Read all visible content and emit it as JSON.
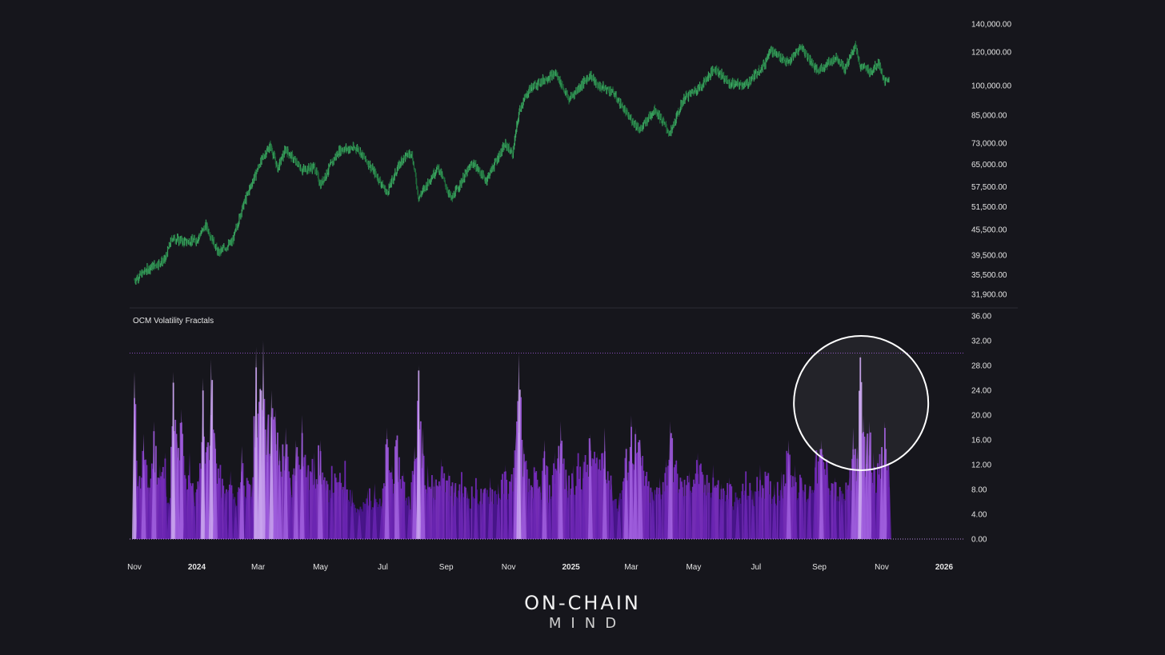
{
  "colors": {
    "background": "#16161c",
    "price_candles": "#2e8b4f",
    "volatility": "#7a2fc0",
    "volatility_peak": "#c9a3ee",
    "threshold_line": "#8a4dbf",
    "highlight_circle": "#ffffff"
  },
  "logo": {
    "line1": "ON-CHAIN",
    "line2": "MIND"
  },
  "chart_data": [
    {
      "type": "line",
      "title": "",
      "scale": "log",
      "ylim": [
        30000,
        150000
      ],
      "y_tick_labels": [
        "140,000.00",
        "120,000.00",
        "100,000.00",
        "85,000.00",
        "73,000.00",
        "65,000.00",
        "57,500.00",
        "51,500.00",
        "45,500.00",
        "39,500.00",
        "35,500.00",
        "31,900.00"
      ],
      "y_tick_values": [
        140000,
        120000,
        100000,
        85000,
        73000,
        65000,
        57500,
        51500,
        45500,
        39500,
        35500,
        31900
      ],
      "x_tick_labels": [
        "Nov",
        "2024",
        "Mar",
        "May",
        "Jul",
        "Sep",
        "Nov",
        "2025",
        "Mar",
        "May",
        "Jul",
        "Sep",
        "Nov",
        "2026"
      ],
      "x_tick_dates": [
        "2023-11-01",
        "2024-01-01",
        "2024-03-01",
        "2024-05-01",
        "2024-07-01",
        "2024-09-01",
        "2024-11-01",
        "2025-01-01",
        "2025-03-01",
        "2025-05-01",
        "2025-07-01",
        "2025-09-01",
        "2025-11-01",
        "2026-01-01"
      ],
      "bold_x_ticks": [
        "2024",
        "2025",
        "2026"
      ],
      "series": [
        {
          "values": [
            [
              "2023-11-01",
              34500
            ],
            [
              "2023-11-15",
              36800
            ],
            [
              "2023-12-01",
              38500
            ],
            [
              "2023-12-08",
              43500
            ],
            [
              "2023-12-20",
              42500
            ],
            [
              "2024-01-01",
              43000
            ],
            [
              "2024-01-10",
              46500
            ],
            [
              "2024-01-22",
              40000
            ],
            [
              "2024-02-05",
              42500
            ],
            [
              "2024-02-15",
              51500
            ],
            [
              "2024-02-28",
              62000
            ],
            [
              "2024-03-05",
              67000
            ],
            [
              "2024-03-13",
              72000
            ],
            [
              "2024-03-20",
              63500
            ],
            [
              "2024-03-28",
              70500
            ],
            [
              "2024-04-13",
              63000
            ],
            [
              "2024-04-25",
              64000
            ],
            [
              "2024-05-01",
              58000
            ],
            [
              "2024-05-20",
              70500
            ],
            [
              "2024-06-06",
              71000
            ],
            [
              "2024-06-25",
              61000
            ],
            [
              "2024-07-05",
              55500
            ],
            [
              "2024-07-20",
              67000
            ],
            [
              "2024-07-29",
              69500
            ],
            [
              "2024-08-05",
              54000
            ],
            [
              "2024-08-24",
              64000
            ],
            [
              "2024-09-06",
              53500
            ],
            [
              "2024-09-27",
              65500
            ],
            [
              "2024-10-10",
              59500
            ],
            [
              "2024-10-29",
              72500
            ],
            [
              "2024-11-05",
              68500
            ],
            [
              "2024-11-12",
              88000
            ],
            [
              "2024-11-22",
              98500
            ],
            [
              "2024-12-05",
              103000
            ],
            [
              "2024-12-17",
              107000
            ],
            [
              "2024-12-30",
              92500
            ],
            [
              "2025-01-20",
              106000
            ],
            [
              "2025-01-27",
              100000
            ],
            [
              "2025-02-10",
              97000
            ],
            [
              "2025-02-26",
              84500
            ],
            [
              "2025-03-10",
              78500
            ],
            [
              "2025-03-24",
              88000
            ],
            [
              "2025-04-08",
              76500
            ],
            [
              "2025-04-22",
              93500
            ],
            [
              "2025-05-08",
              99500
            ],
            [
              "2025-05-22",
              110000
            ],
            [
              "2025-06-05",
              101000
            ],
            [
              "2025-06-22",
              100500
            ],
            [
              "2025-07-10",
              113000
            ],
            [
              "2025-07-14",
              122000
            ],
            [
              "2025-08-02",
              113000
            ],
            [
              "2025-08-14",
              124000
            ],
            [
              "2025-08-30",
              108000
            ],
            [
              "2025-09-18",
              117000
            ],
            [
              "2025-09-26",
              109000
            ],
            [
              "2025-10-06",
              125000
            ],
            [
              "2025-10-11",
              111000
            ],
            [
              "2025-10-22",
              108000
            ],
            [
              "2025-10-29",
              113500
            ],
            [
              "2025-11-04",
              101000
            ],
            [
              "2025-11-08",
              104500
            ]
          ]
        }
      ]
    },
    {
      "type": "area",
      "title": "OCM Volatility Fractals",
      "ylim": [
        0,
        36
      ],
      "y_tick_labels": [
        "36.00",
        "32.00",
        "28.00",
        "24.00",
        "20.00",
        "16.00",
        "12.00",
        "8.00",
        "4.00",
        "0.00"
      ],
      "y_tick_values": [
        36,
        32,
        28,
        24,
        20,
        16,
        12,
        8,
        4,
        0
      ],
      "threshold": 30,
      "highlight": {
        "date": "2025-10-11",
        "value": 30
      },
      "series": [
        {
          "values": [
            [
              "2023-11-01",
              27
            ],
            [
              "2023-11-05",
              10
            ],
            [
              "2023-11-10",
              17
            ],
            [
              "2023-11-15",
              9
            ],
            [
              "2023-11-20",
              19
            ],
            [
              "2023-11-26",
              12
            ],
            [
              "2023-12-01",
              14
            ],
            [
              "2023-12-05",
              6
            ],
            [
              "2023-12-09",
              27
            ],
            [
              "2023-12-13",
              16
            ],
            [
              "2023-12-17",
              21
            ],
            [
              "2023-12-21",
              11
            ],
            [
              "2023-12-25",
              14
            ],
            [
              "2023-12-29",
              8
            ],
            [
              "2024-01-03",
              10
            ],
            [
              "2024-01-07",
              26
            ],
            [
              "2024-01-11",
              16
            ],
            [
              "2024-01-15",
              29
            ],
            [
              "2024-01-19",
              17
            ],
            [
              "2024-01-24",
              12
            ],
            [
              "2024-01-29",
              8
            ],
            [
              "2024-02-03",
              11
            ],
            [
              "2024-02-08",
              6
            ],
            [
              "2024-02-14",
              15
            ],
            [
              "2024-02-19",
              10
            ],
            [
              "2024-02-24",
              9
            ],
            [
              "2024-02-28",
              31
            ],
            [
              "2024-03-03",
              25
            ],
            [
              "2024-03-06",
              32
            ],
            [
              "2024-03-10",
              20
            ],
            [
              "2024-03-14",
              24
            ],
            [
              "2024-03-18",
              21
            ],
            [
              "2024-03-22",
              15
            ],
            [
              "2024-03-28",
              18
            ],
            [
              "2024-04-02",
              9
            ],
            [
              "2024-04-07",
              16
            ],
            [
              "2024-04-13",
              20
            ],
            [
              "2024-04-18",
              12
            ],
            [
              "2024-04-25",
              14
            ],
            [
              "2024-05-01",
              16
            ],
            [
              "2024-05-06",
              9
            ],
            [
              "2024-05-12",
              12
            ],
            [
              "2024-05-18",
              10
            ],
            [
              "2024-05-25",
              13
            ],
            [
              "2024-06-01",
              8
            ],
            [
              "2024-06-08",
              5
            ],
            [
              "2024-06-16",
              8
            ],
            [
              "2024-06-23",
              9
            ],
            [
              "2024-06-30",
              6
            ],
            [
              "2024-07-05",
              18
            ],
            [
              "2024-07-10",
              12
            ],
            [
              "2024-07-15",
              17
            ],
            [
              "2024-07-21",
              11
            ],
            [
              "2024-07-27",
              7
            ],
            [
              "2024-08-01",
              15
            ],
            [
              "2024-08-05",
              28
            ],
            [
              "2024-08-09",
              18
            ],
            [
              "2024-08-14",
              12
            ],
            [
              "2024-08-20",
              10
            ],
            [
              "2024-08-27",
              13
            ],
            [
              "2024-09-03",
              11
            ],
            [
              "2024-09-09",
              9
            ],
            [
              "2024-09-16",
              11
            ],
            [
              "2024-09-22",
              8
            ],
            [
              "2024-09-30",
              10
            ],
            [
              "2024-10-07",
              8
            ],
            [
              "2024-10-14",
              10
            ],
            [
              "2024-10-22",
              9
            ],
            [
              "2024-10-29",
              12
            ],
            [
              "2024-11-03",
              10
            ],
            [
              "2024-11-08",
              17
            ],
            [
              "2024-11-11",
              30
            ],
            [
              "2024-11-16",
              15
            ],
            [
              "2024-11-21",
              10
            ],
            [
              "2024-11-26",
              12
            ],
            [
              "2024-12-02",
              9
            ],
            [
              "2024-12-06",
              16
            ],
            [
              "2024-12-11",
              9
            ],
            [
              "2024-12-16",
              14
            ],
            [
              "2024-12-22",
              19
            ],
            [
              "2024-12-28",
              10
            ],
            [
              "2025-01-03",
              12
            ],
            [
              "2025-01-08",
              14
            ],
            [
              "2025-01-13",
              13
            ],
            [
              "2025-01-20",
              17
            ],
            [
              "2025-01-27",
              14
            ],
            [
              "2025-02-03",
              18
            ],
            [
              "2025-02-10",
              9
            ],
            [
              "2025-02-17",
              7
            ],
            [
              "2025-02-24",
              15
            ],
            [
              "2025-03-01",
              20
            ],
            [
              "2025-03-05",
              18
            ],
            [
              "2025-03-10",
              16
            ],
            [
              "2025-03-16",
              11
            ],
            [
              "2025-03-22",
              8
            ],
            [
              "2025-03-29",
              10
            ],
            [
              "2025-04-04",
              13
            ],
            [
              "2025-04-08",
              19
            ],
            [
              "2025-04-14",
              13
            ],
            [
              "2025-04-20",
              10
            ],
            [
              "2025-04-27",
              11
            ],
            [
              "2025-05-05",
              14
            ],
            [
              "2025-05-12",
              10
            ],
            [
              "2025-05-20",
              12
            ],
            [
              "2025-05-28",
              9
            ],
            [
              "2025-06-05",
              10
            ],
            [
              "2025-06-13",
              7
            ],
            [
              "2025-06-21",
              11
            ],
            [
              "2025-06-28",
              8
            ],
            [
              "2025-07-05",
              12
            ],
            [
              "2025-07-12",
              11
            ],
            [
              "2025-07-19",
              9
            ],
            [
              "2025-07-26",
              11
            ],
            [
              "2025-08-02",
              16
            ],
            [
              "2025-08-08",
              12
            ],
            [
              "2025-08-15",
              10
            ],
            [
              "2025-08-22",
              9
            ],
            [
              "2025-08-28",
              14
            ],
            [
              "2025-09-03",
              16
            ],
            [
              "2025-09-09",
              13
            ],
            [
              "2025-09-16",
              10
            ],
            [
              "2025-09-23",
              8
            ],
            [
              "2025-09-30",
              10
            ],
            [
              "2025-10-04",
              18
            ],
            [
              "2025-10-08",
              15
            ],
            [
              "2025-10-11",
              30
            ],
            [
              "2025-10-14",
              20
            ],
            [
              "2025-10-17",
              17
            ],
            [
              "2025-10-20",
              19
            ],
            [
              "2025-10-24",
              14
            ],
            [
              "2025-10-28",
              13
            ],
            [
              "2025-11-01",
              15
            ],
            [
              "2025-11-04",
              19
            ],
            [
              "2025-11-08",
              13
            ]
          ]
        }
      ]
    }
  ]
}
